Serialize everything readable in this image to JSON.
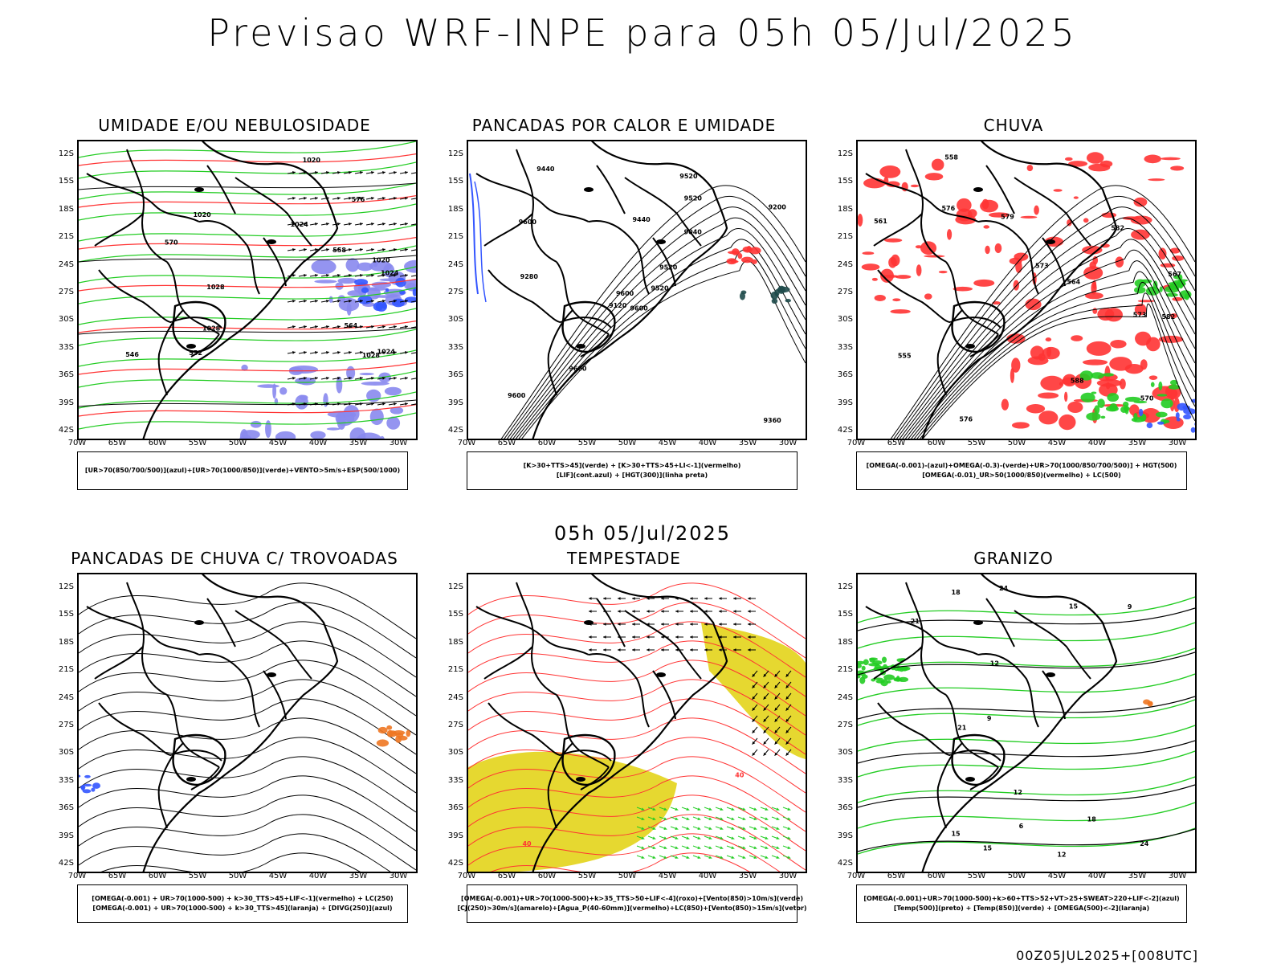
{
  "title": "Previsao WRF-INPE  para 05h 05/Jul/2025",
  "subtitle": "05h 05/Jul/2025",
  "footer": "00Z05JUL2025+[008UTC]",
  "lat_labels": [
    "12S",
    "15S",
    "18S",
    "21S",
    "24S",
    "27S",
    "30S",
    "33S",
    "36S",
    "39S",
    "42S"
  ],
  "lon_labels": [
    "70W",
    "65W",
    "60W",
    "55W",
    "50W",
    "45W",
    "40W",
    "35W",
    "30W"
  ],
  "colors": {
    "green": "#22cc22",
    "red": "#ff3333",
    "blue": "#3355ff",
    "lavender": "#8888ee",
    "yellow": "#e6d830",
    "orange": "#ee7722",
    "black": "#000000"
  },
  "panels": [
    {
      "title": "UMIDADE E/OU NEBULOSIDADE",
      "legend": [
        "[UR>70(850/700/500)](azul)+[UR>70(1000/850)](verde)+VENTO>5m/s+ESP(500/1000)"
      ],
      "labels": [
        "1020",
        "1020",
        "1024",
        "1024",
        "1028",
        "1024",
        "1028",
        "1020",
        "1028",
        "576",
        "570",
        "564",
        "558",
        "552",
        "546"
      ]
    },
    {
      "title": "PANCADAS POR CALOR E UMIDADE",
      "legend": [
        "[K>30+TTS>45](verde) + [K>30+TTS>45+LI<-1](vermelho)",
        "[LIF](cont.azul) + [HGT(300)](linha preta)"
      ],
      "labels": [
        "9600",
        "9600",
        "9600",
        "9600",
        "9520",
        "9600",
        "9520",
        "9440",
        "9520",
        "9520",
        "9440",
        "9360",
        "9280",
        "9200",
        "9120",
        "9040"
      ]
    },
    {
      "title": "CHUVA",
      "legend": [
        "[OMEGA(-0.001)-(azul)+OMEGA(-0.3)-(verde)+UR>70(1000/850/700/500)] + HGT(500)",
        "[OMEGA(-0.01)_UR>50(1000/850)(vermelho) + LC(500)"
      ],
      "labels": [
        "582",
        "588",
        "582",
        "579",
        "576",
        "576",
        "573",
        "570",
        "567",
        "564",
        "561",
        "558",
        "555",
        "573"
      ]
    },
    {
      "title": "PANCADAS DE CHUVA C/ TROVOADAS",
      "legend": [
        "[OMEGA(-0.001) + UR>70(1000-500) + k>30_TTS>45+LIF<-1](vermelho) + LC(250)",
        "[OMEGA(-0.001) + UR>70(1000-500) + k>30_TTS>45](laranja) + [DIVG(250)](azul)"
      ],
      "labels": []
    },
    {
      "title": "TEMPESTADE",
      "legend": [
        "[OMEGA(-0.001)+UR>70(1000-500)+k>35_TTS>50+LIF<-4](roxo)+[Vento(850)>10m/s](verde)",
        "[CJ(250)>30m/s](amarelo)+[Agua_P(40-60mm)](vermelho)+LC(850)+[Vento(850)>15m/s](vetor)"
      ],
      "labels": [
        "40",
        "40"
      ]
    },
    {
      "title": "GRANIZO",
      "legend": [
        "[OMEGA(-0.001)+UR>70(1000-500)+k>60+TTS>52+VT>25+SWEAT>220+LIF<-2](azul)",
        "[Temp(500)](preto) + [Temp(850)](verde) + [OMEGA(500)<-2](laranja)"
      ],
      "labels": [
        "15",
        "12",
        "15",
        "18",
        "18",
        "21",
        "21",
        "24",
        "24",
        "12",
        "9",
        "6",
        "9",
        "12",
        "15"
      ]
    }
  ]
}
